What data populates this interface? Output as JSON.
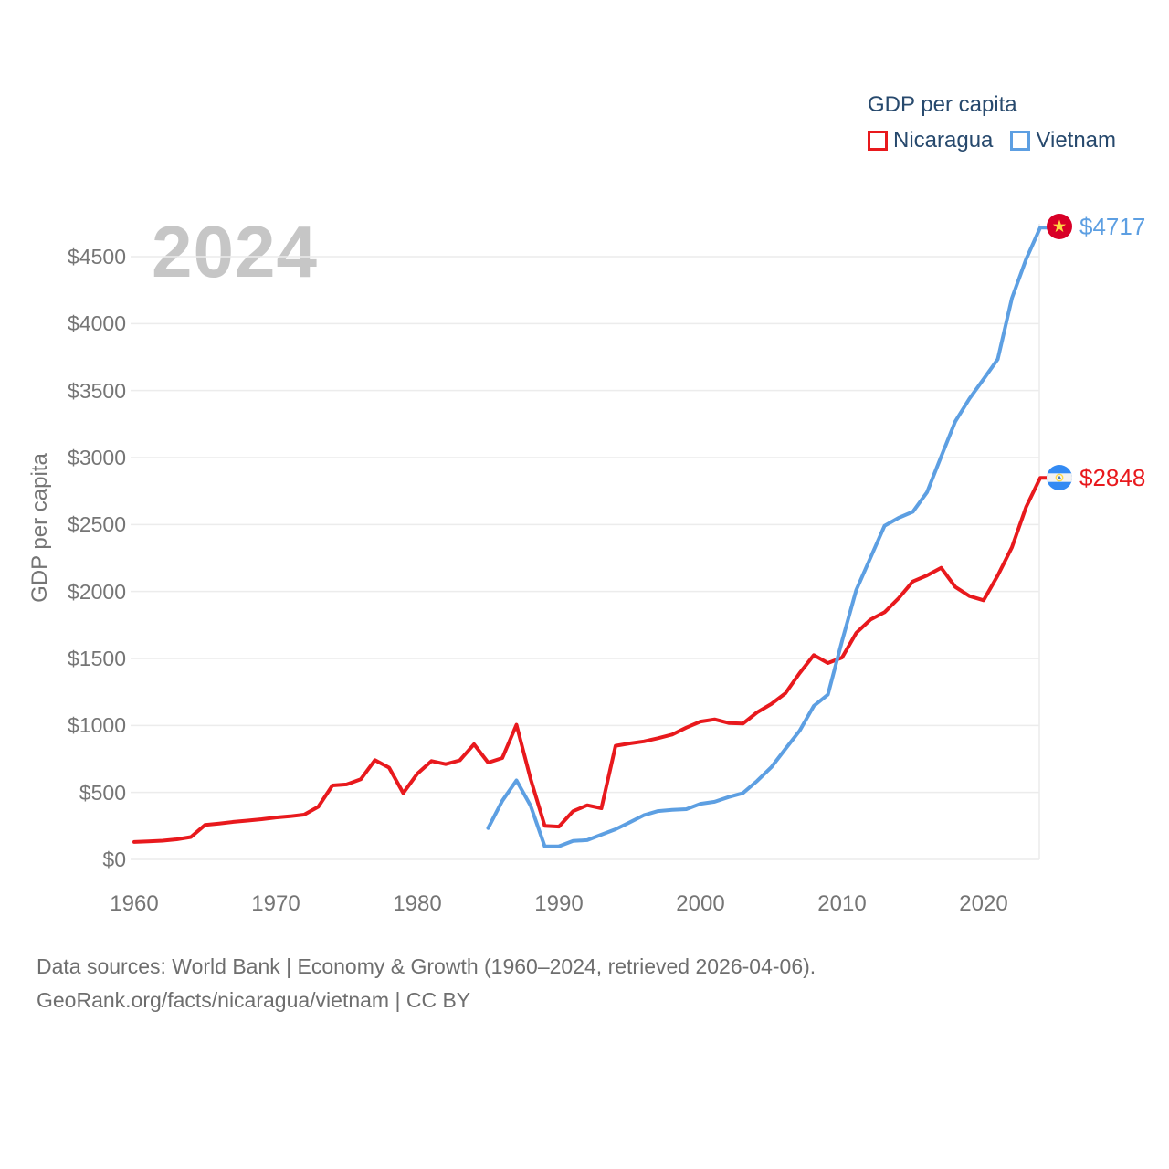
{
  "watermark": "2024",
  "legend": {
    "title": "GDP per capita",
    "items": [
      {
        "label": "Nicaragua"
      },
      {
        "label": "Vietnam"
      }
    ]
  },
  "end_labels": {
    "vietnam": {
      "icon": "vietnam-flag-icon",
      "text": "$4717"
    },
    "nicaragua": {
      "icon": "nicaragua-flag-icon",
      "text": "$2848"
    }
  },
  "footer": {
    "line1": "Data sources: World Bank | Economy & Growth (1960–2024, retrieved 2026-04-06).",
    "line2": "GeoRank.org/facts/nicaragua/vietnam | CC BY"
  },
  "chart_data": {
    "type": "line",
    "title": "GDP per capita",
    "ylabel": "GDP per capita",
    "xlabel": "",
    "grid": true,
    "legend_position": "top-right",
    "xlim": [
      1960,
      2024
    ],
    "ylim": [
      0,
      4750
    ],
    "x_ticks": [
      {
        "label": "1960",
        "value": 1960
      },
      {
        "label": "1970",
        "value": 1970
      },
      {
        "label": "1980",
        "value": 1980
      },
      {
        "label": "1990",
        "value": 1990
      },
      {
        "label": "2000",
        "value": 2000
      },
      {
        "label": "2010",
        "value": 2010
      },
      {
        "label": "2020",
        "value": 2020
      }
    ],
    "y_ticks": [
      {
        "label": "$0",
        "value": 0
      },
      {
        "label": "$500",
        "value": 500
      },
      {
        "label": "$1000",
        "value": 1000
      },
      {
        "label": "$1500",
        "value": 1500
      },
      {
        "label": "$2000",
        "value": 2000
      },
      {
        "label": "$2500",
        "value": 2500
      },
      {
        "label": "$3000",
        "value": 3000
      },
      {
        "label": "$3500",
        "value": 3500
      },
      {
        "label": "$4000",
        "value": 4000
      },
      {
        "label": "$4500",
        "value": 4500
      }
    ],
    "series": [
      {
        "name": "Nicaragua",
        "color": "#e8191d",
        "start_year": 1960,
        "end_value": 2848,
        "end_value_label": "$2848",
        "values": [
          130,
          134,
          140,
          150,
          167,
          257,
          268,
          280,
          290,
          300,
          313,
          322,
          334,
          393,
          552,
          560,
          598,
          741,
          685,
          495,
          640,
          734,
          711,
          740,
          860,
          723,
          757,
          1005,
          600,
          250,
          245,
          360,
          404,
          382,
          848,
          866,
          881,
          905,
          932,
          984,
          1029,
          1045,
          1018,
          1014,
          1098,
          1160,
          1240,
          1390,
          1525,
          1466,
          1507,
          1690,
          1790,
          1845,
          1950,
          2075,
          2120,
          2177,
          2034,
          1966,
          1934,
          2120,
          2330,
          2630,
          2848
        ]
      },
      {
        "name": "Vietnam",
        "color": "#5d9fe2",
        "start_year": 1985,
        "end_value": 4717,
        "end_value_label": "$4717",
        "values": [
          234,
          438,
          590,
          400,
          97,
          98,
          138,
          144,
          185,
          225,
          277,
          330,
          361,
          370,
          375,
          415,
          430,
          466,
          495,
          586,
          688,
          825,
          960,
          1145,
          1230,
          1630,
          2010,
          2250,
          2490,
          2550,
          2595,
          2740,
          3007,
          3270,
          3440,
          3586,
          3734,
          4190,
          4480,
          4717
        ]
      }
    ]
  }
}
